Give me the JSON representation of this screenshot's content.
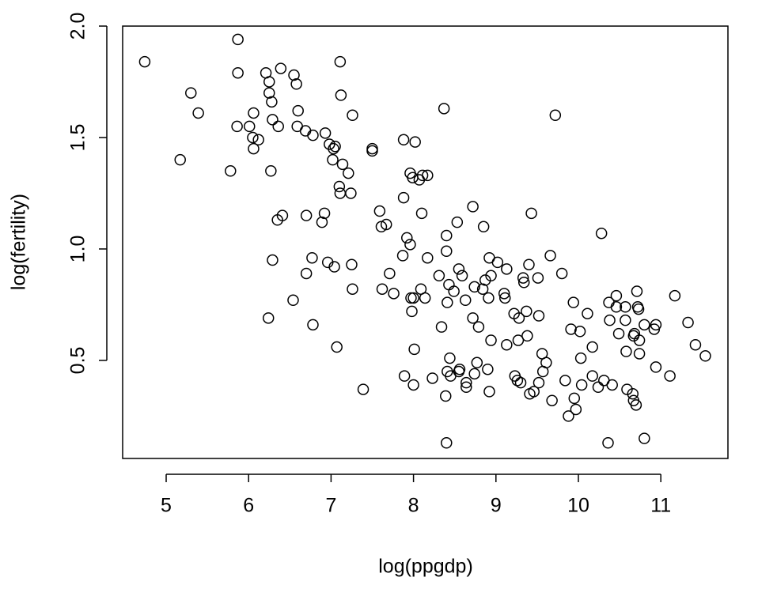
{
  "chart_data": {
    "type": "scatter",
    "x_label": "log(ppgdp)",
    "y_label": "log(fertility)",
    "xlim": [
      4.472,
      11.814
    ],
    "ylim": [
      0.06,
      2.0
    ],
    "xticks": [
      5,
      6,
      7,
      8,
      9,
      10,
      11
    ],
    "yticks": [
      0.5,
      {
        "value": 1,
        "label": "1.0"
      },
      1.5,
      {
        "value": 2,
        "label": "2.0"
      }
    ],
    "color": "#000000",
    "x": [
      4.74,
      5.3,
      5.39,
      5.17,
      5.87,
      5.87,
      5.86,
      5.78,
      6.01,
      6.06,
      6.05,
      6.06,
      6.12,
      6.21,
      6.25,
      6.25,
      6.28,
      6.29,
      6.36,
      6.27,
      6.39,
      6.55,
      6.58,
      6.6,
      6.59,
      6.69,
      6.78,
      6.93,
      7.11,
      7.12,
      7.26,
      6.98,
      7.03,
      7.05,
      7.02,
      7.14,
      7.21,
      7.1,
      7.11,
      7.24,
      7.5,
      7.5,
      6.35,
      6.41,
      6.7,
      6.92,
      6.89,
      6.29,
      6.77,
      6.7,
      6.96,
      7.04,
      7.25,
      7.26,
      6.54,
      6.24,
      6.78,
      7.07,
      7.39,
      7.59,
      7.61,
      7.67,
      7.88,
      8.02,
      7.96,
      7.99,
      8.07,
      8.11,
      8.17,
      8.37,
      9.72,
      7.88,
      8.1,
      7.92,
      7.96,
      7.87,
      8.17,
      7.71,
      7.62,
      7.76,
      7.97,
      8.0,
      7.98,
      8.09,
      8.14,
      8.01,
      7.89,
      8.0,
      8.23,
      8.4,
      8.53,
      8.72,
      8.85,
      8.4,
      8.31,
      8.43,
      8.49,
      8.55,
      8.59,
      8.41,
      8.63,
      8.74,
      8.84,
      8.87,
      8.92,
      8.94,
      9.02,
      9.13,
      9.1,
      9.11,
      8.91,
      8.72,
      8.79,
      8.34,
      8.44,
      8.41,
      8.39,
      8.45,
      8.55,
      8.56,
      8.64,
      8.64,
      8.74,
      8.77,
      8.9,
      8.92,
      8.94,
      8.4,
      9.13,
      9.22,
      9.28,
      9.37,
      9.27,
      9.38,
      9.33,
      9.34,
      9.4,
      9.43,
      9.51,
      9.66,
      9.8,
      9.52,
      9.56,
      9.57,
      9.61,
      9.23,
      9.26,
      9.3,
      9.41,
      9.46,
      9.52,
      9.68,
      9.84,
      9.95,
      9.88,
      9.97,
      9.91,
      9.94,
      10.02,
      10.03,
      10.04,
      10.11,
      10.17,
      10.17,
      10.24,
      10.28,
      10.31,
      10.41,
      10.36,
      10.37,
      10.38,
      10.46,
      10.46,
      10.49,
      10.57,
      10.57,
      10.58,
      10.59,
      10.66,
      10.67,
      10.68,
      10.67,
      10.71,
      10.72,
      10.73,
      10.74,
      10.74,
      10.7,
      10.8,
      10.8,
      10.92,
      10.94,
      10.94,
      11.17,
      11.11,
      11.33,
      11.42,
      11.54
    ],
    "y": [
      1.84,
      1.7,
      1.61,
      1.4,
      1.94,
      1.79,
      1.55,
      1.35,
      1.55,
      1.61,
      1.5,
      1.45,
      1.49,
      1.79,
      1.75,
      1.7,
      1.66,
      1.58,
      1.55,
      1.35,
      1.81,
      1.78,
      1.74,
      1.62,
      1.55,
      1.53,
      1.51,
      1.52,
      1.84,
      1.69,
      1.6,
      1.47,
      1.45,
      1.46,
      1.4,
      1.38,
      1.34,
      1.28,
      1.25,
      1.25,
      1.45,
      1.44,
      1.13,
      1.15,
      1.15,
      1.16,
      1.12,
      0.95,
      0.96,
      0.89,
      0.94,
      0.92,
      0.93,
      0.82,
      0.77,
      0.69,
      0.66,
      0.56,
      0.37,
      1.17,
      1.1,
      1.11,
      1.49,
      1.48,
      1.34,
      1.32,
      1.31,
      1.33,
      1.33,
      1.63,
      1.6,
      1.23,
      1.16,
      1.05,
      1.02,
      0.97,
      0.96,
      0.89,
      0.82,
      0.8,
      0.78,
      0.78,
      0.72,
      0.82,
      0.78,
      0.55,
      0.43,
      0.39,
      0.42,
      1.06,
      1.12,
      1.19,
      1.1,
      0.99,
      0.88,
      0.84,
      0.81,
      0.91,
      0.88,
      0.76,
      0.77,
      0.83,
      0.82,
      0.86,
      0.96,
      0.88,
      0.94,
      0.91,
      0.8,
      0.78,
      0.78,
      0.69,
      0.65,
      0.65,
      0.51,
      0.45,
      0.34,
      0.43,
      0.45,
      0.46,
      0.4,
      0.38,
      0.44,
      0.49,
      0.46,
      0.36,
      0.59,
      0.13,
      0.57,
      0.71,
      0.69,
      0.72,
      0.59,
      0.61,
      0.87,
      0.85,
      0.93,
      1.16,
      0.87,
      0.97,
      0.89,
      0.7,
      0.53,
      0.45,
      0.49,
      0.43,
      0.41,
      0.4,
      0.35,
      0.36,
      0.4,
      0.32,
      0.41,
      0.33,
      0.25,
      0.28,
      0.64,
      0.76,
      0.63,
      0.51,
      0.39,
      0.71,
      0.56,
      0.43,
      0.38,
      1.07,
      0.41,
      0.39,
      0.13,
      0.76,
      0.68,
      0.79,
      0.74,
      0.62,
      0.74,
      0.68,
      0.54,
      0.37,
      0.35,
      0.61,
      0.62,
      0.32,
      0.81,
      0.74,
      0.73,
      0.53,
      0.59,
      0.3,
      0.15,
      0.66,
      0.64,
      0.66,
      0.47,
      0.79,
      0.43,
      0.67,
      0.57,
      0.52
    ]
  }
}
